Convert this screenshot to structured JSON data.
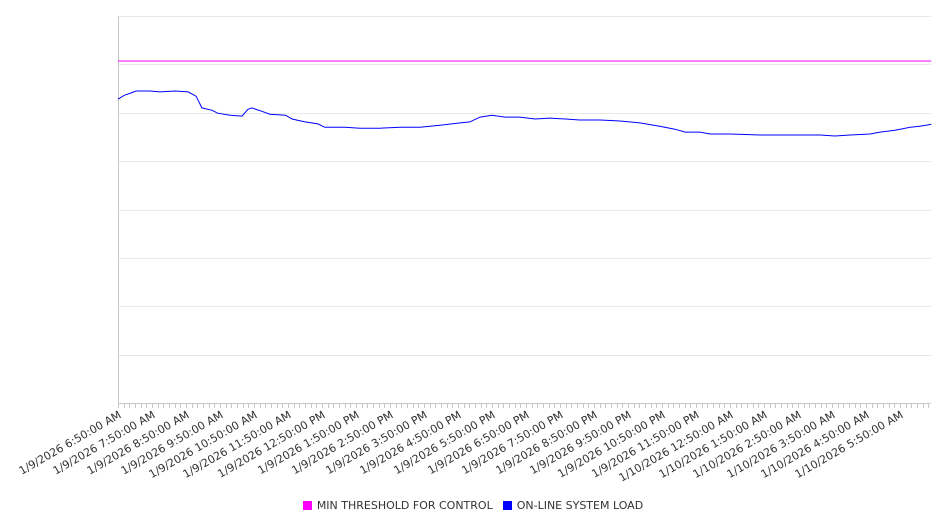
{
  "chart_data": {
    "type": "line",
    "title": "",
    "xlabel": "",
    "ylabel": "",
    "xlim": [
      0,
      1435
    ],
    "ylim": [
      0,
      8
    ],
    "y_gridlines": [
      0,
      1,
      2,
      3,
      4,
      5,
      6,
      7,
      8
    ],
    "y_tick_labels_shown": false,
    "grid": true,
    "legend_position": "bottom",
    "x_unit": "minutes since 1/9/2026 6:50:00 AM",
    "x_ticks": [
      0,
      60,
      120,
      180,
      240,
      300,
      360,
      420,
      480,
      540,
      600,
      660,
      720,
      780,
      840,
      900,
      960,
      1020,
      1080,
      1140,
      1200,
      1260,
      1320,
      1380
    ],
    "x_tick_labels": [
      "1/9/2026 6:50:00 AM",
      "1/9/2026 7:50:00 AM",
      "1/9/2026 8:50:00 AM",
      "1/9/2026 9:50:00 AM",
      "1/9/2026 10:50:00 AM",
      "1/9/2026 11:50:00 AM",
      "1/9/2026 12:50:00 PM",
      "1/9/2026 1:50:00 PM",
      "1/9/2026 2:50:00 PM",
      "1/9/2026 3:50:00 PM",
      "1/9/2026 4:50:00 PM",
      "1/9/2026 5:50:00 PM",
      "1/9/2026 6:50:00 PM",
      "1/9/2026 7:50:00 PM",
      "1/9/2026 8:50:00 PM",
      "1/9/2026 9:50:00 PM",
      "1/9/2026 10:50:00 PM",
      "1/9/2026 11:50:00 PM",
      "1/10/2026 12:50:00 AM",
      "1/10/2026 1:50:00 AM",
      "1/10/2026 2:50:00 AM",
      "1/10/2026 3:50:00 AM",
      "1/10/2026 4:50:00 AM",
      "1/10/2026 5:50:00 AM"
    ],
    "series": [
      {
        "name": "MIN THRESHOLD FOR CONTROL",
        "color": "#ff00ff",
        "x": [
          0,
          1435
        ],
        "values": [
          7.07,
          7.07
        ]
      },
      {
        "name": "ON-LINE SYSTEM LOAD",
        "color": "#0000ff",
        "x": [
          0,
          11,
          21,
          32,
          56,
          74,
          101,
          124,
          138,
          148,
          166,
          176,
          198,
          219,
          229,
          236,
          254,
          268,
          296,
          307,
          330,
          353,
          365,
          401,
          427,
          462,
          498,
          533,
          568,
          604,
          621,
          639,
          660,
          683,
          709,
          736,
          762,
          789,
          815,
          851,
          886,
          921,
          956,
          983,
          1001,
          1027,
          1045,
          1080,
          1133,
          1186,
          1239,
          1265,
          1292,
          1327,
          1345,
          1371,
          1398,
          1415,
          1435
        ],
        "values": [
          6.28,
          6.36,
          6.4,
          6.45,
          6.45,
          6.43,
          6.45,
          6.43,
          6.34,
          6.1,
          6.05,
          5.99,
          5.95,
          5.93,
          6.07,
          6.1,
          6.03,
          5.97,
          5.95,
          5.87,
          5.81,
          5.77,
          5.7,
          5.7,
          5.68,
          5.68,
          5.7,
          5.7,
          5.74,
          5.79,
          5.81,
          5.91,
          5.95,
          5.91,
          5.91,
          5.87,
          5.89,
          5.87,
          5.85,
          5.85,
          5.83,
          5.79,
          5.72,
          5.66,
          5.6,
          5.6,
          5.56,
          5.56,
          5.54,
          5.54,
          5.54,
          5.52,
          5.54,
          5.56,
          5.6,
          5.64,
          5.7,
          5.72,
          5.76
        ]
      }
    ]
  }
}
